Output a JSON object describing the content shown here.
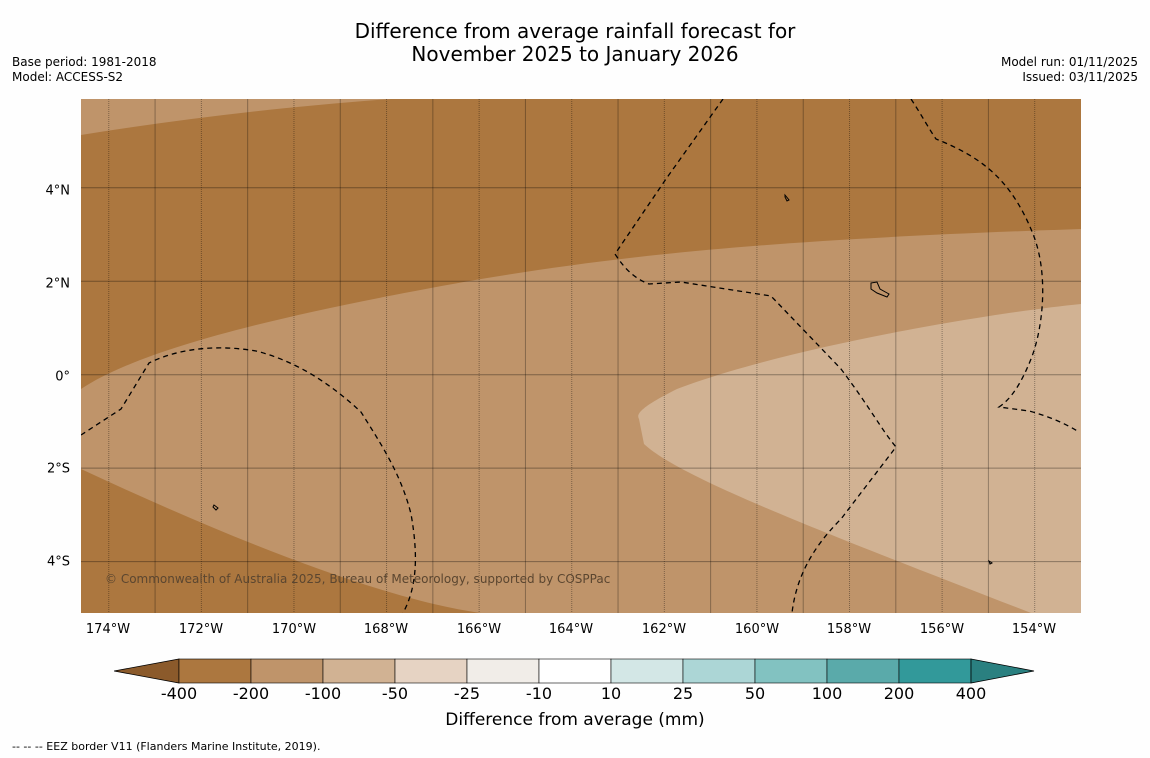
{
  "title": {
    "line1": "Difference from average rainfall forecast for",
    "line2": "November 2025 to January 2026"
  },
  "meta_left": {
    "base_period": "Base period: 1981-2018",
    "model": "Model: ACCESS-S2"
  },
  "meta_right": {
    "model_run": "Model run: 01/11/2025",
    "issued": "Issued: 03/11/2025"
  },
  "map": {
    "lat_range": [
      -5.1,
      5.9
    ],
    "lon_range": [
      -174.6,
      -153.0
    ],
    "lat_labels": [
      {
        "value": 4,
        "label": "4°N"
      },
      {
        "value": 2,
        "label": "2°N"
      },
      {
        "value": 0,
        "label": "0°"
      },
      {
        "value": -2,
        "label": "2°S"
      },
      {
        "value": -4,
        "label": "4°S"
      }
    ],
    "lon_labels": [
      {
        "value": -174,
        "label": "174°W"
      },
      {
        "value": -172,
        "label": "172°W"
      },
      {
        "value": -170,
        "label": "170°W"
      },
      {
        "value": -168,
        "label": "168°W"
      },
      {
        "value": -166,
        "label": "166°W"
      },
      {
        "value": -164,
        "label": "164°W"
      },
      {
        "value": -162,
        "label": "162°W"
      },
      {
        "value": -160,
        "label": "160°W"
      },
      {
        "value": -158,
        "label": "158°W"
      },
      {
        "value": -156,
        "label": "156°W"
      },
      {
        "value": -154,
        "label": "154°W"
      }
    ],
    "minor_lon_lines": [
      -173,
      -171,
      -169,
      -167,
      -165,
      -163,
      -161,
      -159,
      -157,
      -155
    ],
    "fill_colors": {
      "category_-400_-200": "#ac773f",
      "category_-200_-100": "#bf946a",
      "category_-100_-50": "#d1b293"
    },
    "copyright": "© Commonwealth of Australia 2025, Bureau of Meteorology, supported by COSPPac"
  },
  "legend": {
    "title": "Difference from average (mm)",
    "low_arrow_color": "#8b5a2b",
    "high_arrow_color": "#2a8080",
    "colors": [
      "#ac773f",
      "#bf946a",
      "#d1b293",
      "#e6d3c3",
      "#f1ede8",
      "#ffffff",
      "#d3e7e6",
      "#acd6d6",
      "#82c2c1",
      "#5aaaaa",
      "#32999a"
    ],
    "ticks": [
      "-400",
      "-200",
      "-100",
      "-50",
      "-25",
      "-10",
      "10",
      "25",
      "50",
      "100",
      "200",
      "400"
    ]
  },
  "footer": {
    "eez_note": "--  --  -- EEZ border V11 (Flanders Marine Institute, 2019)."
  }
}
